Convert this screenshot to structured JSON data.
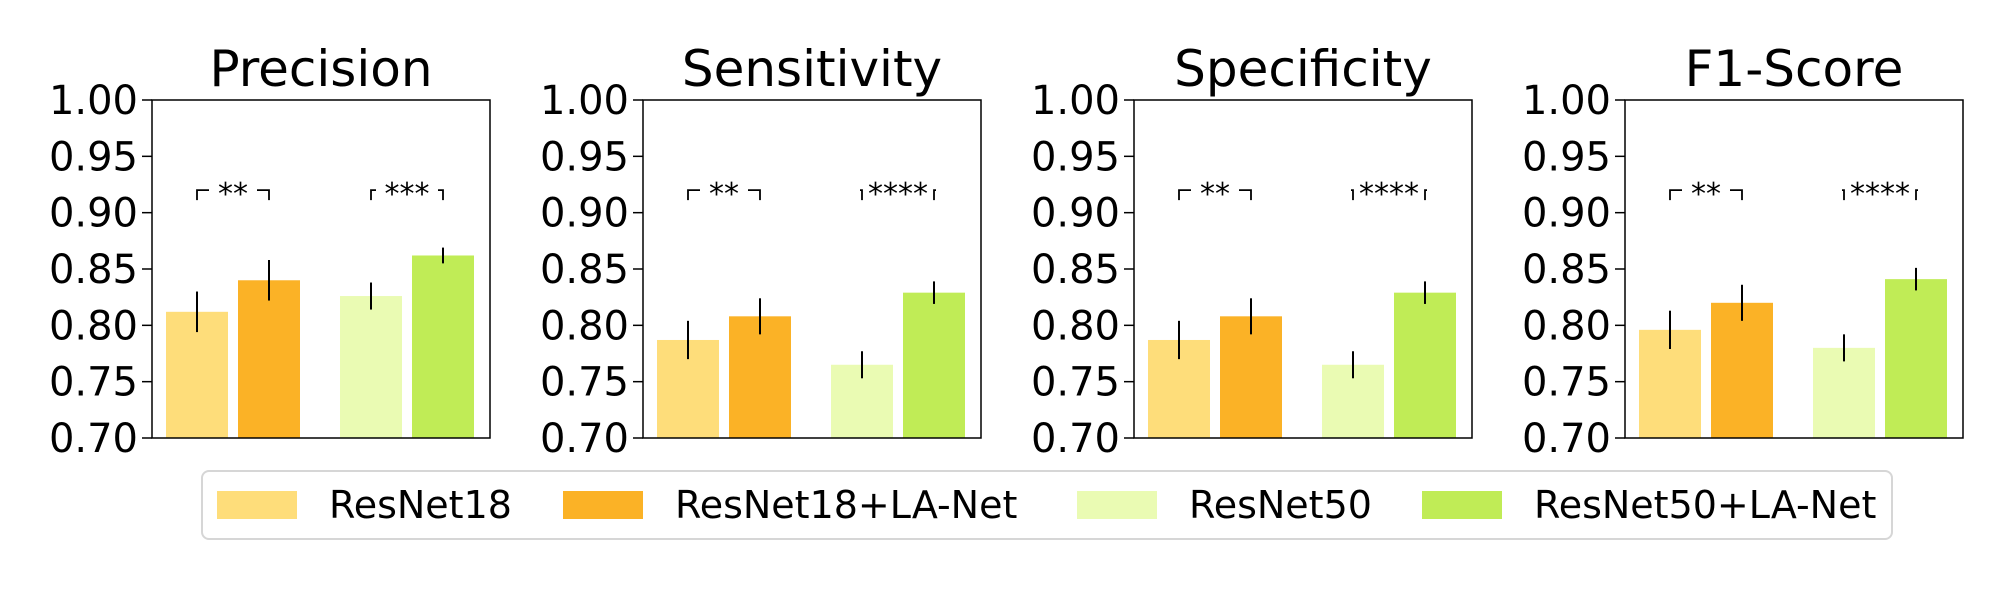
{
  "colors": {
    "ResNet18": "#fedd7a",
    "ResNet18+LA-Net": "#fbb226",
    "ResNet50": "#eafbb3",
    "ResNet50+LA-Net": "#c0ec56"
  },
  "legend": {
    "items": [
      {
        "label": "ResNet18",
        "color": "#fedd7a"
      },
      {
        "label": "ResNet18+LA-Net",
        "color": "#fbb226"
      },
      {
        "label": "ResNet50",
        "color": "#eafbb3"
      },
      {
        "label": "ResNet50+LA-Net",
        "color": "#c0ec56"
      }
    ]
  },
  "chart_data": [
    {
      "type": "bar",
      "title": "Precision",
      "categories": [
        "ResNet18",
        "ResNet18+LA-Net",
        "ResNet50",
        "ResNet50+LA-Net"
      ],
      "values": [
        0.812,
        0.84,
        0.826,
        0.862
      ],
      "errors": [
        0.018,
        0.018,
        0.012,
        0.007
      ],
      "ylim": [
        0.7,
        1.0
      ],
      "yticks": [
        "0.70",
        "0.75",
        "0.80",
        "0.85",
        "0.90",
        "0.95",
        "1.00"
      ],
      "significance": [
        {
          "pair": [
            0,
            1
          ],
          "label": "**"
        },
        {
          "pair": [
            2,
            3
          ],
          "label": "***"
        }
      ]
    },
    {
      "type": "bar",
      "title": "Sensitivity",
      "categories": [
        "ResNet18",
        "ResNet18+LA-Net",
        "ResNet50",
        "ResNet50+LA-Net"
      ],
      "values": [
        0.787,
        0.808,
        0.765,
        0.829
      ],
      "errors": [
        0.017,
        0.016,
        0.012,
        0.01
      ],
      "ylim": [
        0.7,
        1.0
      ],
      "yticks": [
        "0.70",
        "0.75",
        "0.80",
        "0.85",
        "0.90",
        "0.95",
        "1.00"
      ],
      "significance": [
        {
          "pair": [
            0,
            1
          ],
          "label": "**"
        },
        {
          "pair": [
            2,
            3
          ],
          "label": "****"
        }
      ]
    },
    {
      "type": "bar",
      "title": "Specificity",
      "categories": [
        "ResNet18",
        "ResNet18+LA-Net",
        "ResNet50",
        "ResNet50+LA-Net"
      ],
      "values": [
        0.787,
        0.808,
        0.765,
        0.829
      ],
      "errors": [
        0.017,
        0.016,
        0.012,
        0.01
      ],
      "ylim": [
        0.7,
        1.0
      ],
      "yticks": [
        "0.70",
        "0.75",
        "0.80",
        "0.85",
        "0.90",
        "0.95",
        "1.00"
      ],
      "significance": [
        {
          "pair": [
            0,
            1
          ],
          "label": "**"
        },
        {
          "pair": [
            2,
            3
          ],
          "label": "****"
        }
      ]
    },
    {
      "type": "bar",
      "title": "F1-Score",
      "categories": [
        "ResNet18",
        "ResNet18+LA-Net",
        "ResNet50",
        "ResNet50+LA-Net"
      ],
      "values": [
        0.796,
        0.82,
        0.78,
        0.841
      ],
      "errors": [
        0.017,
        0.016,
        0.012,
        0.01
      ],
      "ylim": [
        0.7,
        1.0
      ],
      "yticks": [
        "0.70",
        "0.75",
        "0.80",
        "0.85",
        "0.90",
        "0.95",
        "1.00"
      ],
      "significance": [
        {
          "pair": [
            0,
            1
          ],
          "label": "**"
        },
        {
          "pair": [
            2,
            3
          ],
          "label": "****"
        }
      ]
    }
  ]
}
